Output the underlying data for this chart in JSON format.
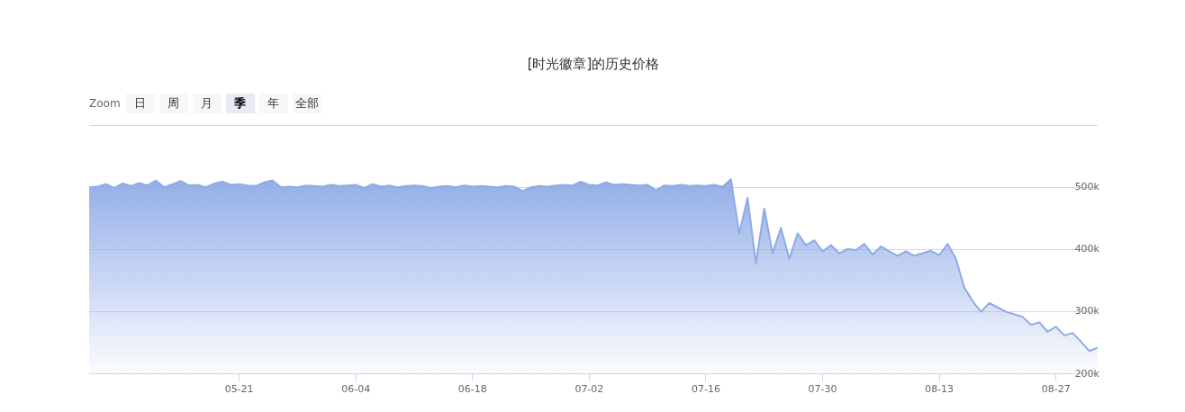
{
  "chart_data": {
    "type": "area",
    "title": "[时光徽章]的历史价格",
    "annotations": [
      "Zoom",
      "日",
      "周",
      "月",
      "季",
      "年",
      "全部"
    ],
    "x": [
      "--05-03",
      "--05-04",
      "--05-05",
      "--05-06",
      "--05-07",
      "--05-08",
      "--05-09",
      "--05-10",
      "--05-11",
      "--05-12",
      "--05-13",
      "--05-14",
      "--05-15",
      "--05-16",
      "--05-17",
      "--05-18",
      "--05-19",
      "--05-20",
      "--05-21",
      "--05-22",
      "--05-23",
      "--05-24",
      "--05-25",
      "--05-26",
      "--05-27",
      "--05-28",
      "--05-29",
      "--05-30",
      "--05-31",
      "--06-01",
      "--06-02",
      "--06-03",
      "--06-04",
      "--06-05",
      "--06-06",
      "--06-07",
      "--06-08",
      "--06-09",
      "--06-10",
      "--06-11",
      "--06-12",
      "--06-13",
      "--06-14",
      "--06-15",
      "--06-16",
      "--06-17",
      "--06-18",
      "--06-19",
      "--06-20",
      "--06-21",
      "--06-22",
      "--06-23",
      "--06-24",
      "--06-25",
      "--06-26",
      "--06-27",
      "--06-28",
      "--06-29",
      "--06-30",
      "--07-01",
      "--07-02",
      "--07-03",
      "--07-04",
      "--07-05",
      "--07-06",
      "--07-07",
      "--07-08",
      "--07-09",
      "--07-10",
      "--07-11",
      "--07-12",
      "--07-13",
      "--07-14",
      "--07-15",
      "--07-16",
      "--07-17",
      "--07-18",
      "--07-19",
      "--07-20",
      "--07-21",
      "--07-22",
      "--07-23",
      "--07-24",
      "--07-25",
      "--07-26",
      "--07-27",
      "--07-28",
      "--07-29",
      "--07-30",
      "--07-31",
      "--08-01",
      "--08-02",
      "--08-03",
      "--08-04",
      "--08-05",
      "--08-06",
      "--08-07",
      "--08-08",
      "--08-09",
      "--08-10",
      "--08-11",
      "--08-12",
      "--08-13",
      "--08-14",
      "--08-15",
      "--08-16",
      "--08-17",
      "--08-18",
      "--08-19",
      "--08-20",
      "--08-21",
      "--08-22",
      "--08-23",
      "--08-24",
      "--08-25",
      "--08-26",
      "--08-27",
      "--08-28",
      "--08-29",
      "--08-30",
      "--08-31",
      "--09-01"
    ],
    "values": [
      500000,
      501000,
      505000,
      499000,
      506000,
      502000,
      507000,
      503000,
      511000,
      500000,
      505000,
      510000,
      503000,
      504000,
      500000,
      506000,
      509000,
      504000,
      505000,
      503000,
      502000,
      508000,
      511000,
      500000,
      501000,
      500000,
      503000,
      502000,
      501000,
      504000,
      502000,
      503000,
      504000,
      499000,
      505000,
      501000,
      503000,
      500000,
      502000,
      503000,
      502000,
      499000,
      501000,
      502000,
      500000,
      503000,
      501000,
      502000,
      501000,
      500000,
      502000,
      501000,
      494000,
      500000,
      502000,
      501000,
      503000,
      504000,
      503000,
      509000,
      504000,
      503000,
      508000,
      504000,
      505000,
      504000,
      503000,
      504000,
      495000,
      503000,
      502000,
      504000,
      502000,
      503000,
      502000,
      504000,
      501000,
      513000,
      426000,
      483000,
      378000,
      466000,
      394000,
      435000,
      385000,
      426000,
      407000,
      415000,
      397000,
      407000,
      394000,
      401000,
      399000,
      409000,
      392000,
      405000,
      397000,
      390000,
      397000,
      390000,
      394000,
      398000,
      391000,
      409000,
      385000,
      339000,
      317000,
      300000,
      314000,
      307000,
      300000,
      296000,
      292000,
      279000,
      283000,
      268000,
      276000,
      262000,
      266000,
      252000,
      237000,
      242000
    ],
    "color": "#8fabe6",
    "xlim": [
      "--05-03",
      "--09-01"
    ],
    "xticks": [
      {
        "value": "--05-21",
        "label": "05-21"
      },
      {
        "value": "--06-04",
        "label": "06-04"
      },
      {
        "value": "--06-18",
        "label": "06-18"
      },
      {
        "value": "--07-02",
        "label": "07-02"
      },
      {
        "value": "--07-16",
        "label": "07-16"
      },
      {
        "value": "--07-30",
        "label": "07-30"
      },
      {
        "value": "--08-13",
        "label": "08-13"
      },
      {
        "value": "--08-27",
        "label": "08-27"
      }
    ],
    "ylim": [
      200000,
      600000
    ],
    "yticks": [
      {
        "value": 200000,
        "label": "200k"
      },
      {
        "value": 300000,
        "label": "300k"
      },
      {
        "value": 400000,
        "label": "400k"
      },
      {
        "value": 500000,
        "label": "500k"
      },
      {
        "value": 600000,
        "label": null
      }
    ],
    "grid": "y"
  }
}
